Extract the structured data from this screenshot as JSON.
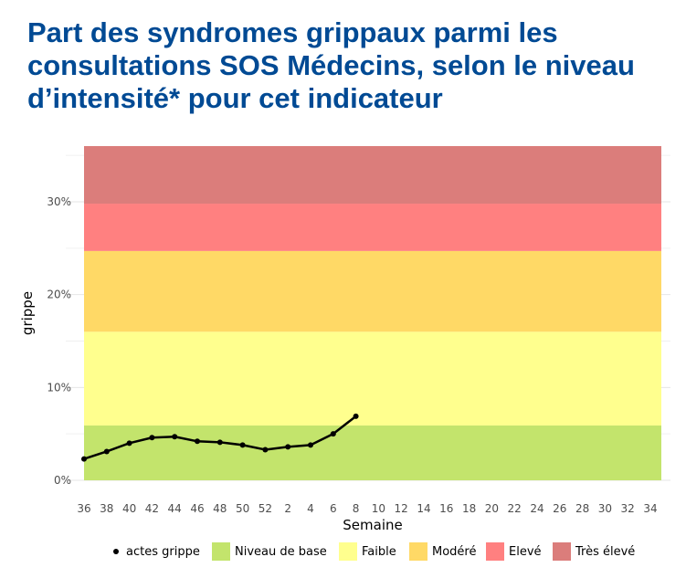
{
  "title_lines": [
    "Part des syndromes grippaux parmi les",
    "consultations SOS Médecins, selon le niveau",
    "d’intensité* pour cet indicateur"
  ],
  "chart_data": {
    "type": "line",
    "xlabel": "Semaine",
    "ylabel": "grippe",
    "ylim": [
      0,
      36
    ],
    "y_ticks": [
      0,
      10,
      20,
      30
    ],
    "y_tick_labels": [
      "0%",
      "10%",
      "20%",
      "30%"
    ],
    "x_tick_labels": [
      "36",
      "38",
      "40",
      "42",
      "44",
      "46",
      "48",
      "50",
      "52",
      "2",
      "4",
      "6",
      "8",
      "10",
      "12",
      "14",
      "16",
      "18",
      "20",
      "22",
      "24",
      "26",
      "28",
      "30",
      "32",
      "34"
    ],
    "bands": [
      {
        "name": "Niveau de base",
        "from": 0,
        "to": 5.9,
        "color": "#c3e46c"
      },
      {
        "name": "Faible",
        "from": 5.9,
        "to": 16.0,
        "color": "#ffff8e"
      },
      {
        "name": "Modéré",
        "from": 16.0,
        "to": 24.7,
        "color": "#ffd966"
      },
      {
        "name": "Elevé",
        "from": 24.7,
        "to": 29.8,
        "color": "#ff8080"
      },
      {
        "name": "Très élevé",
        "from": 29.8,
        "to": 36,
        "color": "#db7d7b"
      }
    ],
    "series": [
      {
        "name": "actes grippe",
        "color": "#000000",
        "x_index": [
          0,
          1,
          2,
          3,
          4,
          5,
          6,
          7,
          8,
          9,
          10,
          11,
          12
        ],
        "values": [
          2.3,
          3.1,
          4.0,
          4.6,
          4.7,
          4.2,
          4.1,
          3.8,
          3.3,
          3.6,
          3.8,
          5.0,
          6.9
        ]
      }
    ],
    "legend": [
      "actes grippe",
      "Niveau de base",
      "Faible",
      "Modéré",
      "Elevé",
      "Très élevé"
    ]
  }
}
